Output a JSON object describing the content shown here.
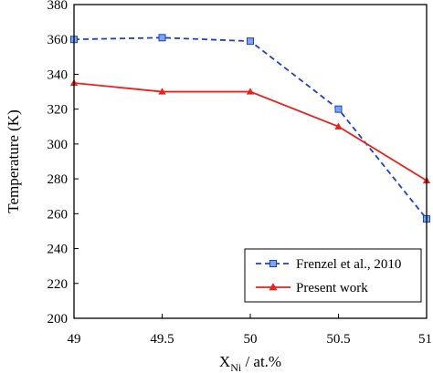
{
  "chart_data": {
    "type": "line",
    "xlabel_main": "X",
    "xlabel_sub": "Ni",
    "xlabel_rest": " / at.%",
    "ylabel": "Temperature (K)",
    "xlim": [
      49,
      51
    ],
    "ylim": [
      200,
      380
    ],
    "xticks": [
      "49",
      "49.5",
      "50",
      "50.5",
      "51"
    ],
    "yticks": [
      "200",
      "220",
      "240",
      "260",
      "280",
      "300",
      "320",
      "340",
      "360",
      "380"
    ],
    "grid": false,
    "legend_position": "bottom-right",
    "series": [
      {
        "name": "Frenzel et al., 2010",
        "color": "#1f3fd0",
        "marker_fill": "#7aa6e8",
        "marker": "square",
        "line_style": "dashed",
        "x": [
          49,
          49.5,
          50,
          50.5,
          51
        ],
        "y": [
          360,
          361,
          359,
          320,
          257
        ]
      },
      {
        "name": "Present work",
        "color": "#e8221c",
        "marker": "triangle",
        "line_style": "solid",
        "x": [
          49,
          49.5,
          50,
          50.5,
          51
        ],
        "y": [
          335,
          330,
          330,
          310,
          279
        ]
      }
    ]
  }
}
